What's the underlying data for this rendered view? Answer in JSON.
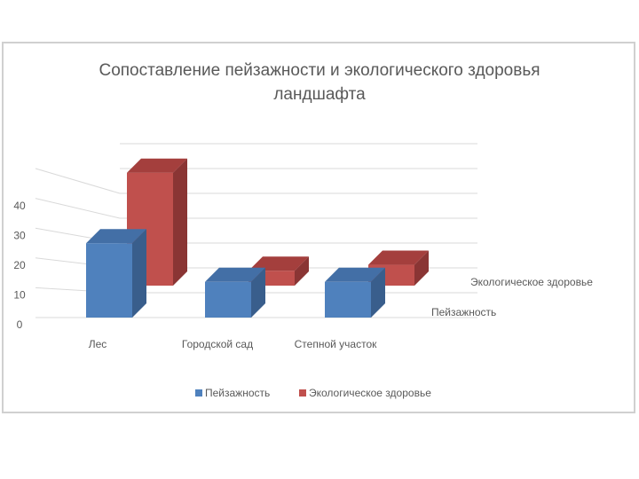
{
  "chart_data": {
    "type": "bar",
    "title_line1": "Сопоставление  пейзажности и экологического здоровья",
    "title_line2": "ландшафта",
    "categories": [
      "Лес",
      "Городской сад",
      "Степной участок"
    ],
    "series": [
      {
        "name": "Пейзажность",
        "values": [
          25,
          12,
          12
        ],
        "color": "#4f81bd",
        "side_color": "#395e8c",
        "top_color": "#436fa6"
      },
      {
        "name": "Экологическое здоровье",
        "values": [
          38,
          5,
          7
        ],
        "color": "#c0504d",
        "side_color": "#8a3534",
        "top_color": "#a43f3d"
      }
    ],
    "y_ticks": [
      "0",
      "10",
      "20",
      "30",
      "40"
    ],
    "ylim": [
      0,
      50
    ],
    "grid": true,
    "legend_position": "bottom"
  }
}
